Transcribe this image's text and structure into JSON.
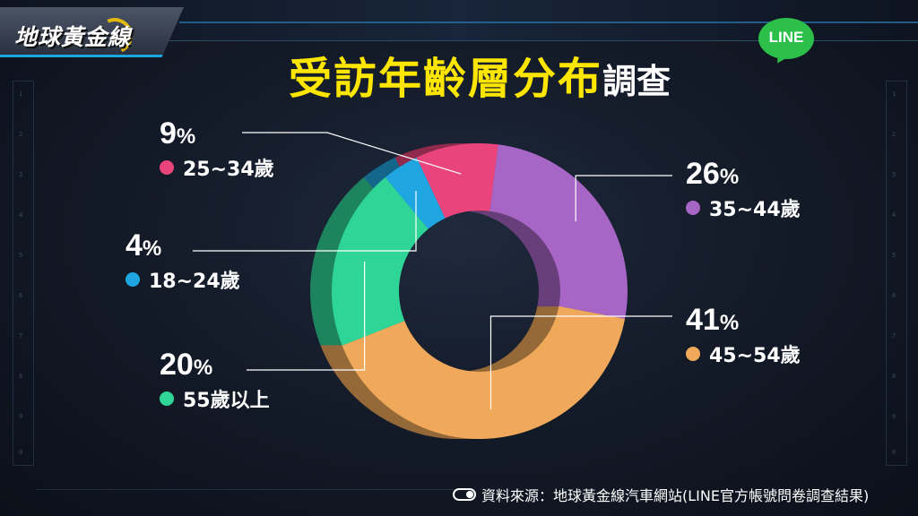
{
  "logo": {
    "text": "地球黃金線"
  },
  "title": {
    "main": "受訪年齡層分布",
    "sub": "調查"
  },
  "badge": {
    "text": "LINE"
  },
  "chart_data": {
    "type": "pie",
    "title": "受訪年齡層分布調查",
    "donut": true,
    "slices": [
      {
        "label": "35~44歲",
        "value": 26,
        "pct_text": "26",
        "color": "#a766c5"
      },
      {
        "label": "45~54歲",
        "value": 41,
        "pct_text": "41",
        "color": "#f0a95a"
      },
      {
        "label": "55歲以上",
        "value": 20,
        "pct_text": "20",
        "color": "#2ed597"
      },
      {
        "label": "18~24歲",
        "value": 4,
        "pct_text": "4",
        "color": "#1fa6e0"
      },
      {
        "label": "25~34歲",
        "value": 9,
        "pct_text": "9",
        "color": "#e9457c"
      }
    ]
  },
  "percent_symbol": "%",
  "source": {
    "text": "資料來源：地球黃金線汽車網站(LINE官方帳號問卷調查結果)"
  }
}
